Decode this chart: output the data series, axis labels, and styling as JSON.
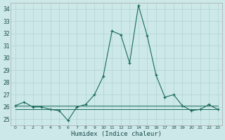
{
  "xlabel": "Humidex (Indice chaleur)",
  "background_color": "#cce8e8",
  "grid_color": "#aacece",
  "line_color": "#1a6b5a",
  "x": [
    0,
    1,
    2,
    3,
    4,
    5,
    6,
    7,
    8,
    9,
    10,
    11,
    12,
    13,
    14,
    15,
    16,
    17,
    18,
    19,
    20,
    21,
    22,
    23
  ],
  "y_main": [
    26.1,
    26.4,
    26.0,
    26.0,
    25.8,
    25.7,
    24.9,
    26.0,
    26.2,
    27.0,
    28.5,
    32.2,
    31.9,
    29.6,
    34.3,
    31.8,
    28.6,
    26.8,
    27.0,
    26.1,
    25.7,
    25.8,
    26.2,
    25.8
  ],
  "y_flat1": [
    26.1,
    26.1,
    26.1,
    26.1,
    26.1,
    26.1,
    26.1,
    26.1,
    26.1,
    26.1,
    26.1,
    26.1,
    26.1,
    26.1,
    26.1,
    26.1,
    26.1,
    26.1,
    26.1,
    26.1,
    26.1,
    26.1,
    26.1,
    26.1
  ],
  "y_flat2": [
    25.8,
    25.8,
    25.8,
    25.8,
    25.8,
    25.8,
    25.8,
    25.8,
    25.8,
    25.8,
    25.8,
    25.8,
    25.8,
    25.8,
    25.8,
    25.8,
    25.8,
    25.8,
    25.8,
    25.8,
    25.8,
    25.8,
    25.8,
    25.8
  ],
  "ylim": [
    24.5,
    34.5
  ],
  "yticks": [
    25,
    26,
    27,
    28,
    29,
    30,
    31,
    32,
    33,
    34
  ],
  "xtick_labels": [
    "0",
    "1",
    "2",
    "3",
    "4",
    "5",
    "6",
    "7",
    "8",
    "9",
    "10",
    "11",
    "12",
    "13",
    "14",
    "15",
    "16",
    "17",
    "18",
    "19",
    "20",
    "21",
    "22",
    "23"
  ]
}
